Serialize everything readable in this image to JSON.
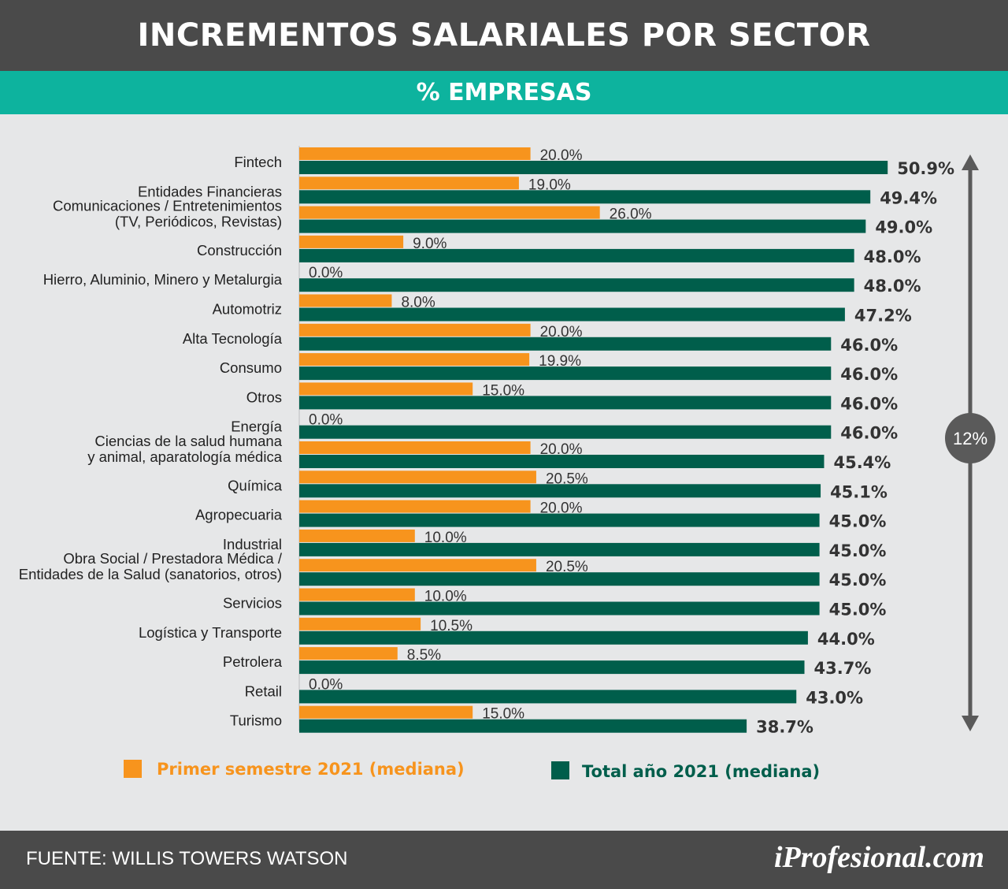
{
  "header": {
    "title": "INCREMENTOS SALARIALES POR SECTOR"
  },
  "subheader": {
    "title": "% EMPRESAS"
  },
  "footer": {
    "source": "FUENTE:  WILLIS TOWERS WATSON",
    "brand": "iProfesional.com"
  },
  "colors": {
    "first_half": "#f7941d",
    "total": "#005e4b",
    "arrow": "#5a5a5a"
  },
  "annotation": {
    "range_label": "12%"
  },
  "chart_data": {
    "type": "bar",
    "orientation": "horizontal",
    "categories": [
      "Fintech",
      "Entidades Financieras",
      "Comunicaciones / Entretenimientos\n(TV, Periódicos, Revistas)",
      "Construcción",
      "Hierro, Aluminio, Minero y Metalurgia",
      "Automotriz",
      "Alta Tecnología",
      "Consumo",
      "Otros",
      "Energía",
      "Ciencias de la salud humana\ny animal, aparatología médica",
      "Química",
      "Agropecuaria",
      "Industrial",
      "Obra Social / Prestadora Médica /\nEntidades de la Salud (sanatorios, otros)",
      "Servicios",
      "Logística y Transporte",
      "Petrolera",
      "Retail",
      "Turismo"
    ],
    "series": [
      {
        "name": "Primer semestre 2021 (mediana)",
        "values": [
          20.0,
          19.0,
          26.0,
          9.0,
          0.0,
          8.0,
          20.0,
          19.9,
          15.0,
          0.0,
          20.0,
          20.5,
          20.0,
          10.0,
          20.5,
          10.0,
          10.5,
          8.5,
          0.0,
          15.0
        ],
        "labels": [
          "20.0%",
          "19.0%",
          "26.0%",
          "9.0%",
          "0.0%",
          "8.0%",
          "20.0%",
          "19.9%",
          "15.0%",
          "0.0%",
          "20.0%",
          "20.5%",
          "20.0%",
          "10.0%",
          "20.5%",
          "10.0%",
          "10.5%",
          "8.5%",
          "0.0%",
          "15.0%"
        ]
      },
      {
        "name": "Total año 2021 (mediana)",
        "values": [
          50.9,
          49.4,
          49.0,
          48.0,
          48.0,
          47.2,
          46.0,
          46.0,
          46.0,
          46.0,
          45.4,
          45.1,
          45.0,
          45.0,
          45.0,
          45.0,
          44.0,
          43.7,
          43.0,
          38.7
        ],
        "labels": [
          "50.9%",
          "49.4%",
          "49.0%",
          "48.0%",
          "48.0%",
          "47.2%",
          "46.0%",
          "46.0%",
          "46.0%",
          "46.0%",
          "45.4%",
          "45.1%",
          "45.0%",
          "45.0%",
          "45.0%",
          "45.0%",
          "44.0%",
          "43.7%",
          "43.0%",
          "38.7%"
        ]
      }
    ],
    "xlim": [
      0,
      50.9
    ],
    "legend_position": "bottom",
    "grid": false
  }
}
